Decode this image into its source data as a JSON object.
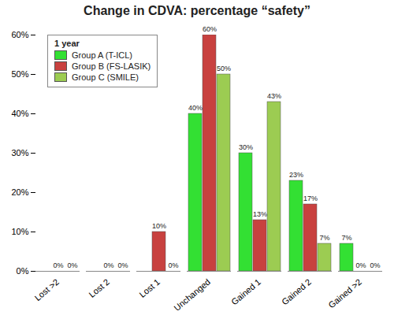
{
  "chart_data": {
    "type": "bar",
    "title": "Change in CDVA: percentage “safety”",
    "legend_title": "1 year",
    "legend": "top-left",
    "data_labels": true,
    "categories": [
      "Lost >2",
      "Lost 2",
      "Lost 1",
      "Unchanged",
      "Gained 1",
      "Gained 2",
      "Gained >2"
    ],
    "series": [
      {
        "name": "Group A (T-ICL)",
        "color": "#33e033",
        "values": [
          0,
          0,
          0,
          40,
          30,
          23,
          7
        ],
        "value_labels": [
          null,
          null,
          null,
          "40%",
          "30%",
          "23%",
          "7%"
        ]
      },
      {
        "name": "Group B (FS-LASIK)",
        "color": "#c8413f",
        "values": [
          0,
          0,
          10,
          60,
          13,
          17,
          0
        ],
        "value_labels": [
          "0%",
          "0%",
          "10%",
          "60%",
          "13%",
          "17%",
          "0%"
        ]
      },
      {
        "name": "Group C (SMILE)",
        "color": "#9ccc52",
        "values": [
          0,
          0,
          0,
          50,
          43,
          7,
          0
        ],
        "value_labels": [
          "0%",
          "0%",
          "0%",
          "50%",
          "43%",
          "7%",
          "0%"
        ]
      }
    ],
    "ylim": [
      0,
      60
    ],
    "yticks": [
      {
        "value": 0,
        "label": "0%"
      },
      {
        "value": 10,
        "label": "10%"
      },
      {
        "value": 20,
        "label": "20%"
      },
      {
        "value": 30,
        "label": "30%"
      },
      {
        "value": 40,
        "label": "40%"
      },
      {
        "value": 50,
        "label": "50%"
      },
      {
        "value": 60,
        "label": "60%"
      }
    ]
  }
}
